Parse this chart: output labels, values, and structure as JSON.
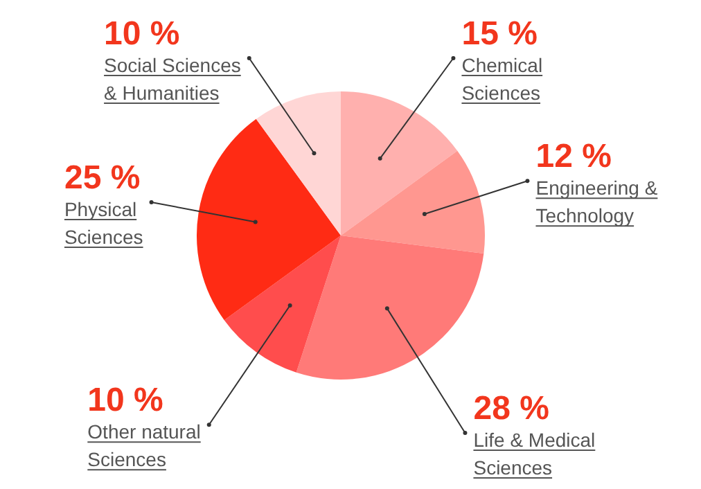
{
  "chart_data": {
    "type": "pie",
    "categories": [
      "Chemical Sciences",
      "Engineering & Technology",
      "Life & Medical Sciences",
      "Other natural Sciences",
      "Physical Sciences",
      "Social Sciences & Humanities"
    ],
    "values": [
      15,
      12,
      28,
      10,
      25,
      10
    ],
    "value_labels": [
      "15 %",
      "12 %",
      "28 %",
      "10 %",
      "25 %",
      "10 %"
    ],
    "colors": [
      "#ffb0ae",
      "#ff9790",
      "#ff7a78",
      "#ff4d4d",
      "#ff2b14",
      "#ffd6d5"
    ],
    "legend": false
  }
}
